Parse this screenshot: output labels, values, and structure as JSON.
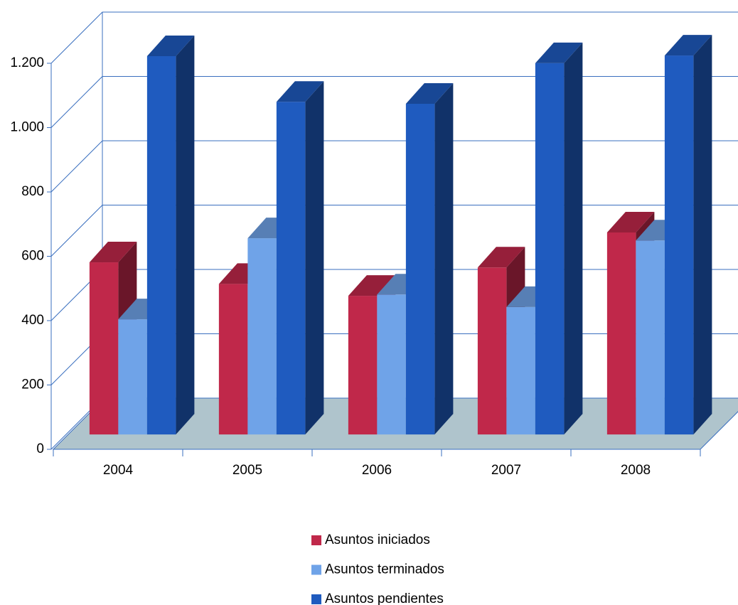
{
  "chart_data": {
    "type": "bar3d",
    "categories": [
      "2004",
      "2005",
      "2006",
      "2007",
      "2008"
    ],
    "series": [
      {
        "name": "Asuntos iniciados",
        "color": "#c0284a",
        "values": [
          535,
          468,
          431,
          519,
          628
        ]
      },
      {
        "name": "Asuntos terminados",
        "color": "#6fa3e8",
        "values": [
          358,
          610,
          435,
          396,
          603
        ]
      },
      {
        "name": "Asuntos pendientes",
        "color": "#1f5bbf",
        "values": [
          1176,
          1034,
          1028,
          1154,
          1178
        ]
      }
    ],
    "ylim": [
      0,
      1200
    ],
    "yticks": [
      0,
      200,
      400,
      600,
      800,
      {
        "value": 1000,
        "label": "1.000"
      },
      {
        "value": 1200,
        "label": "1.200"
      }
    ],
    "grid": true,
    "legend": "bottom"
  }
}
